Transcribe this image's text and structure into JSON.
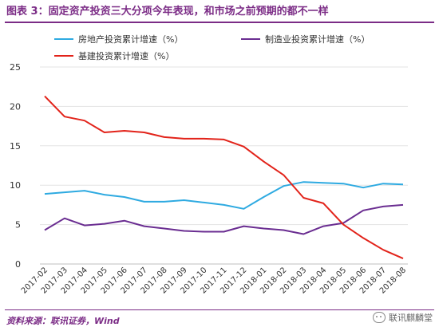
{
  "header": {
    "title": "图表 3：固定资产投资三大分项今年表现，和市场之前预期的都不一样"
  },
  "footer": {
    "source": "资料来源：联讯证券，Wind",
    "watermark": "联讯麒麟堂",
    "watermark_icon": "wechat-icon"
  },
  "chart_data": {
    "type": "line",
    "title": "",
    "xlabel": "",
    "ylabel": "",
    "ylim": [
      0,
      25
    ],
    "yticks": [
      "0",
      "5",
      "10",
      "15",
      "20",
      "25"
    ],
    "grid": true,
    "legend_position": "top",
    "categories": [
      "2017-02",
      "2017-03",
      "2017-04",
      "2017-05",
      "2017-06",
      "2017-07",
      "2017-08",
      "2017-09",
      "2017-10",
      "2017-11",
      "2017-12",
      "2018-01",
      "2018-02",
      "2018-03",
      "2018-04",
      "2018-05",
      "2018-06",
      "2018-07",
      "2018-08"
    ],
    "series": [
      {
        "name": "房地产投资累计增速（%）",
        "color": "#2EAAE1",
        "values": [
          8.9,
          9.1,
          9.3,
          8.8,
          8.5,
          7.9,
          7.9,
          8.1,
          7.8,
          7.5,
          7.0,
          8.5,
          9.9,
          10.4,
          10.3,
          10.2,
          9.7,
          10.2,
          10.1
        ]
      },
      {
        "name": "制造业投资累计增速（%）",
        "color": "#6A2D91",
        "values": [
          4.3,
          5.8,
          4.9,
          5.1,
          5.5,
          4.8,
          4.5,
          4.2,
          4.1,
          4.1,
          4.8,
          4.5,
          4.3,
          3.8,
          4.8,
          5.2,
          6.8,
          7.3,
          7.5
        ]
      },
      {
        "name": "基建投资累计增速（%）",
        "color": "#E2231A",
        "values": [
          21.3,
          18.7,
          18.2,
          16.7,
          16.9,
          16.7,
          16.1,
          15.9,
          15.9,
          15.8,
          14.9,
          13.0,
          11.3,
          8.4,
          7.7,
          5.0,
          3.3,
          1.8,
          0.7
        ]
      }
    ]
  }
}
